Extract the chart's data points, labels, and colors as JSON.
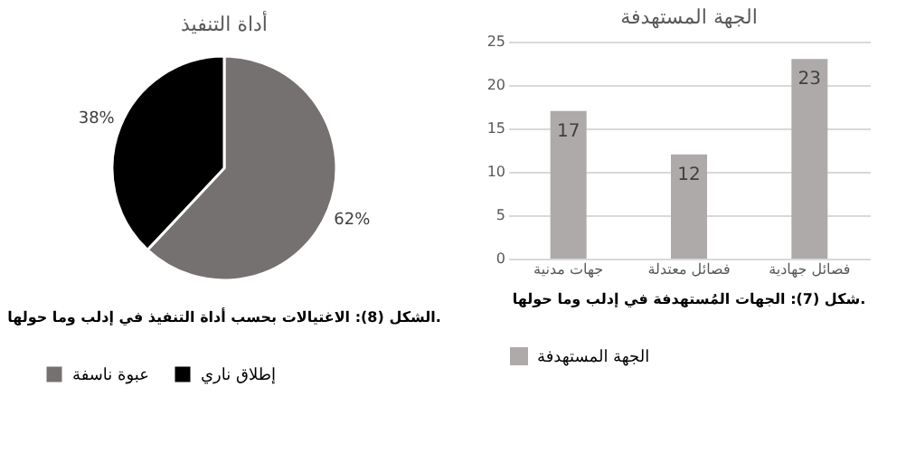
{
  "chart_data": [
    {
      "type": "pie",
      "title": "أداة التنفيذ",
      "categories": [
        "عبوة ناسفة",
        "إطلاق ناري"
      ],
      "values": [
        62,
        38
      ],
      "colors": [
        "#767171",
        "#000000"
      ],
      "value_labels": [
        "62%",
        "38%"
      ],
      "legend": "bottom",
      "annotations": [
        "الشكل (8): الاغتيالات بحسب أداة التنفيذ في إدلب وما حولها."
      ]
    },
    {
      "type": "bar",
      "title": "الجهة المستهدفة",
      "categories": [
        "جهات مدنية",
        "فصائل معتدلة",
        "فصائل جهادية"
      ],
      "series": [
        {
          "name": "الجهة المستهدفة",
          "color": "#aeaaaa",
          "values": [
            17,
            12,
            23
          ]
        }
      ],
      "ylim": [
        0,
        25
      ],
      "yticks": [
        0,
        5,
        10,
        15,
        20,
        25
      ],
      "grid": "y",
      "data_labels": true,
      "legend": "bottom",
      "annotations": [
        "شكل (7): الجهات المُستهدفة في إدلب وما حولها."
      ]
    }
  ]
}
